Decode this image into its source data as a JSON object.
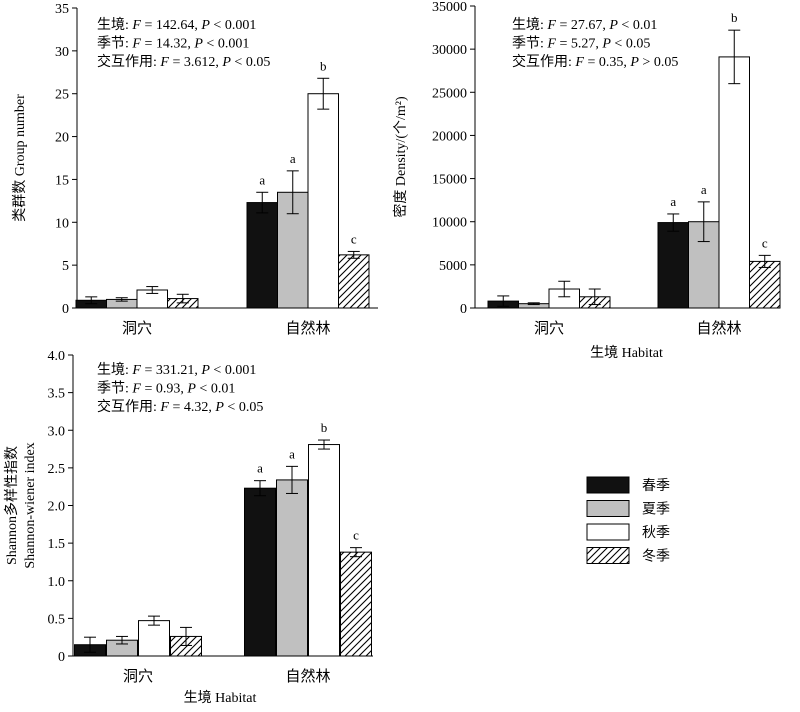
{
  "chart_data": [
    {
      "type": "bar",
      "categories": [
        "洞穴",
        "自然林"
      ],
      "series": [
        {
          "name": "春季",
          "values": [
            0.9,
            12.3
          ],
          "errors": [
            0.4,
            1.2
          ]
        },
        {
          "name": "夏季",
          "values": [
            1.0,
            13.5
          ],
          "errors": [
            0.2,
            2.5
          ]
        },
        {
          "name": "秋季",
          "values": [
            2.1,
            25.0
          ],
          "errors": [
            0.4,
            1.8
          ]
        },
        {
          "name": "冬季",
          "values": [
            1.1,
            6.2
          ],
          "errors": [
            0.5,
            0.4
          ]
        }
      ],
      "sig_letters": [
        [],
        [
          "a",
          "a",
          "b",
          "c"
        ]
      ],
      "ylabel": "类群数 Group number",
      "xlabel": "",
      "ylim": [
        0,
        35
      ],
      "yticks": [
        0,
        5,
        10,
        15,
        20,
        25,
        30,
        35
      ],
      "ytick_labels": [
        "0",
        "5",
        "10",
        "15",
        "20",
        "25",
        "30",
        "35"
      ],
      "annotations": [
        {
          "label": "生境",
          "f": "142.64",
          "p": "< 0.001"
        },
        {
          "label": "季节",
          "f": "14.32",
          "p": "< 0.001"
        },
        {
          "label": "交互作用",
          "f": "3.612",
          "p": "< 0.05"
        }
      ]
    },
    {
      "type": "bar",
      "categories": [
        "洞穴",
        "自然林"
      ],
      "series": [
        {
          "name": "春季",
          "values": [
            800,
            9900
          ],
          "errors": [
            600,
            1000
          ]
        },
        {
          "name": "夏季",
          "values": [
            500,
            10000
          ],
          "errors": [
            100,
            2300
          ]
        },
        {
          "name": "秋季",
          "values": [
            2200,
            29100
          ],
          "errors": [
            900,
            3100
          ]
        },
        {
          "name": "冬季",
          "values": [
            1300,
            5400
          ],
          "errors": [
            900,
            700
          ]
        }
      ],
      "sig_letters": [
        [],
        [
          "a",
          "a",
          "b",
          "c"
        ]
      ],
      "ylabel": "密度 Density/(个/m²)",
      "xlabel": "生境 Habitat",
      "ylim": [
        0,
        35000
      ],
      "yticks": [
        0,
        5000,
        10000,
        15000,
        20000,
        25000,
        30000,
        35000
      ],
      "ytick_labels": [
        "0",
        "5000",
        "10000",
        "15000",
        "20000",
        "25000",
        "30000",
        "35000"
      ],
      "annotations": [
        {
          "label": "生境",
          "f": "27.67",
          "p": "< 0.01"
        },
        {
          "label": "季节",
          "f": "5.27",
          "p": "< 0.05"
        },
        {
          "label": "交互作用",
          "f": "0.35",
          "p": "> 0.05"
        }
      ]
    },
    {
      "type": "bar",
      "categories": [
        "洞穴",
        "自然林"
      ],
      "series": [
        {
          "name": "春季",
          "values": [
            0.15,
            2.23
          ],
          "errors": [
            0.1,
            0.1
          ]
        },
        {
          "name": "夏季",
          "values": [
            0.21,
            2.34
          ],
          "errors": [
            0.05,
            0.18
          ]
        },
        {
          "name": "秋季",
          "values": [
            0.47,
            2.81
          ],
          "errors": [
            0.06,
            0.06
          ]
        },
        {
          "name": "冬季",
          "values": [
            0.26,
            1.38
          ],
          "errors": [
            0.12,
            0.06
          ]
        }
      ],
      "sig_letters": [
        [],
        [
          "a",
          "a",
          "b",
          "c"
        ]
      ],
      "ylabel": "Shannon多样性指数",
      "ylabel2": "Shannon-wiener index",
      "xlabel": "生境 Habitat",
      "ylim": [
        0,
        4.0
      ],
      "yticks": [
        0,
        0.5,
        1.0,
        1.5,
        2.0,
        2.5,
        3.0,
        3.5,
        4.0
      ],
      "ytick_labels": [
        "0",
        "0.5",
        "1.0",
        "1.5",
        "2.0",
        "2.5",
        "3.0",
        "3.5",
        "4.0"
      ],
      "annotations": [
        {
          "label": "生境",
          "f": "331.21",
          "p": "< 0.001"
        },
        {
          "label": "季节",
          "f": "0.93",
          "p": "< 0.01"
        },
        {
          "label": "交互作用",
          "f": "4.32",
          "p": "< 0.05"
        }
      ]
    }
  ],
  "legend": {
    "placement": "right",
    "items": [
      {
        "name": "春季",
        "fill": "#111111",
        "pattern": "solid"
      },
      {
        "name": "夏季",
        "fill": "#c0c0c0",
        "pattern": "solid"
      },
      {
        "name": "秋季",
        "fill": "#ffffff",
        "pattern": "solid"
      },
      {
        "name": "冬季",
        "fill": "#ffffff",
        "pattern": "hatch"
      }
    ]
  },
  "colors": {
    "spring": "#111111",
    "summer": "#c0c0c0",
    "autumn": "#ffffff",
    "winter_hatch": "#000000"
  }
}
